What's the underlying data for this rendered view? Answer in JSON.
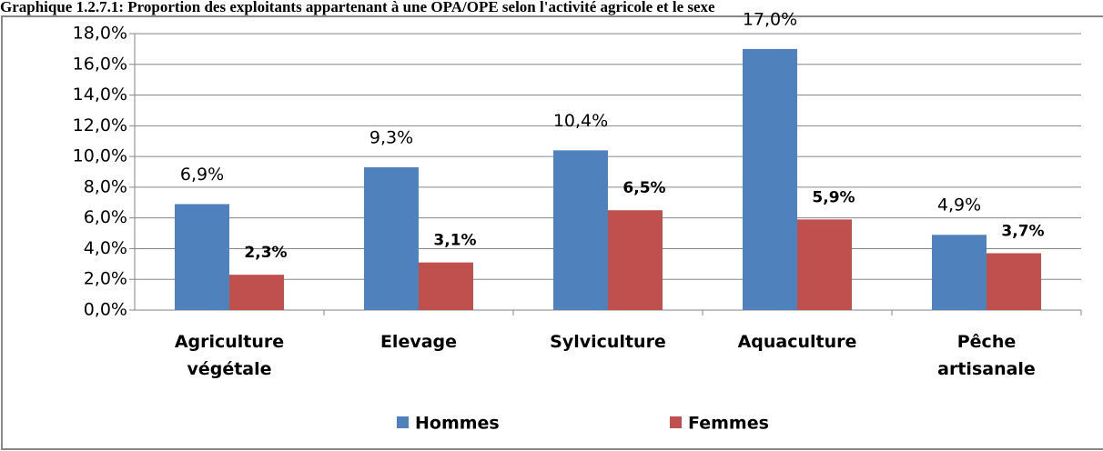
{
  "chart_data": {
    "type": "bar",
    "title": "Graphique 1.2.7.1: Proportion des exploitants appartenant à une OPA/OPE selon l'activité agricole et le sexe",
    "categories": [
      "Agriculture végétale",
      "Elevage",
      "Sylviculture",
      "Aquaculture",
      "Pêche artisanale"
    ],
    "series": [
      {
        "name": "Hommes",
        "color": "#4f81bd",
        "values": [
          6.9,
          9.3,
          10.4,
          17.0,
          4.9
        ],
        "value_labels": [
          "6,9%",
          "9,3%",
          "10,4%",
          "17,0%",
          "4,9%"
        ]
      },
      {
        "name": "Femmes",
        "color": "#c0504d",
        "values": [
          2.3,
          3.1,
          6.5,
          5.9,
          3.7
        ],
        "value_labels": [
          "2,3%",
          "3,1%",
          "6,5%",
          "5,9%",
          "3,7%"
        ]
      }
    ],
    "ylim": [
      0,
      18
    ],
    "yticks": [
      {
        "value": 0,
        "label": "0,0%"
      },
      {
        "value": 2,
        "label": "2,0%"
      },
      {
        "value": 4,
        "label": "4,0%"
      },
      {
        "value": 6,
        "label": "6,0%"
      },
      {
        "value": 8,
        "label": "8,0%"
      },
      {
        "value": 10,
        "label": "10,0%"
      },
      {
        "value": 12,
        "label": "12,0%"
      },
      {
        "value": 14,
        "label": "14,0%"
      },
      {
        "value": 16,
        "label": "16,0%"
      },
      {
        "value": 18,
        "label": "18,0%"
      }
    ],
    "grid": true,
    "legend": "bottom"
  }
}
